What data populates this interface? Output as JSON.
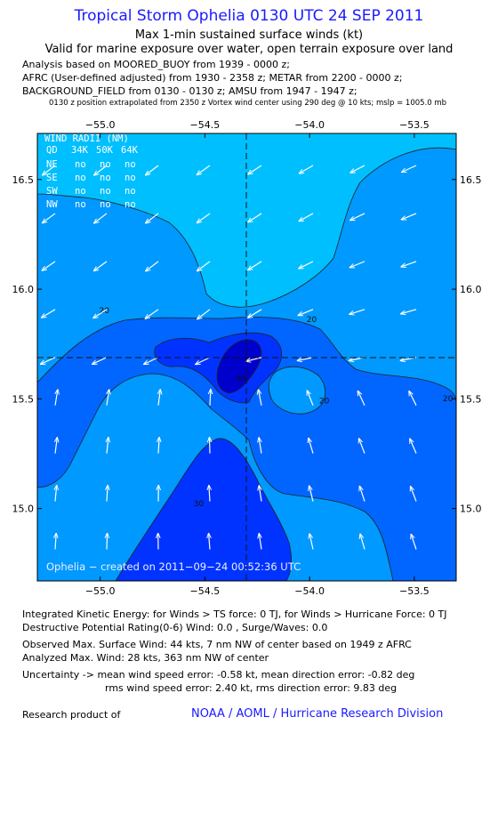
{
  "header": {
    "title": "Tropical Storm Ophelia 0130 UTC 24 SEP 2011",
    "subtitle1": "Max 1-min sustained surface winds (kt)",
    "subtitle2": "Valid for marine exposure over water, open terrain exposure over land",
    "line1": "Analysis based on MOORED_BUOY from 1939 - 0000 z;",
    "line2": "AFRC (User-defined adjusted) from 1930 - 2358 z; METAR from 2200 - 0000 z;",
    "line3": "BACKGROUND_FIELD from 0130 - 0130 z; AMSU from 1947 - 1947 z;",
    "line4": "0130 z position extrapolated from 2350 z Vortex wind center using 290 deg @ 10 kts; mslp = 1005.0 mb"
  },
  "chart_data": {
    "type": "contour",
    "xlim": [
      -55.3,
      -53.3
    ],
    "ylim": [
      14.67,
      16.71
    ],
    "x_ticks": [
      -55.0,
      -54.5,
      -54.0,
      -53.5
    ],
    "x_tick_labels": [
      "−55.0",
      "−54.5",
      "−54.0",
      "−53.5"
    ],
    "y_ticks": [
      16.5,
      16.0,
      15.5,
      15.0
    ],
    "y_tick_labels": [
      "16.5",
      "16.0",
      "15.5",
      "15.0"
    ],
    "center": {
      "lon": -54.28,
      "lat": 15.68
    },
    "contour_labels": [
      {
        "text": "20",
        "lon": -54.98,
        "lat": 15.89
      },
      {
        "text": "20",
        "lon": -53.99,
        "lat": 15.85
      },
      {
        "text": "20",
        "lon": -53.93,
        "lat": 15.48
      },
      {
        "text": "30",
        "lon": -54.53,
        "lat": 15.01
      },
      {
        "text": "20",
        "lon": -53.34,
        "lat": 15.49
      },
      {
        "text": "30",
        "lon": -54.33,
        "lat": 15.58
      }
    ],
    "levels_colors": {
      "0-10": "#00bfff",
      "10-20": "#0099ff",
      "20-30": "#0066ff",
      "30-40": "#0033ff",
      "40+": "#0000cc"
    },
    "wind_radii_table": {
      "title": "WIND RADII (NM)",
      "header": [
        "QD",
        "34K",
        "50K",
        "64K"
      ],
      "rows": [
        [
          "NE",
          "no",
          "no",
          "no"
        ],
        [
          "SE",
          "no",
          "no",
          "no"
        ],
        [
          "SW",
          "no",
          "no",
          "no"
        ],
        [
          "NW",
          "no",
          "no",
          "no"
        ]
      ]
    },
    "credit": "Ophelia − created on 2011−09−24 00:52:36 UTC"
  },
  "footer": {
    "ike": "Integrated Kinetic Energy:  for Winds > TS force: 0 TJ,  for Winds > Hurricane Force: 0 TJ",
    "dpr": "Destructive Potential Rating(0-6)   Wind: 0.0 , Surge/Waves: 0.0",
    "obs": "Observed Max. Surface Wind: 44 kts, 7 nm NW of center based on 1949 z AFRC",
    "analyzed": "Analyzed Max. Wind: 28 kts, 363 nm NW of center",
    "uncert1": "Uncertainty -> mean wind speed error:  -0.58 kt,   mean direction error:  -0.82 deg",
    "uncert2": "rms wind speed error: 2.40 kt,   rms direction error: 9.83 deg",
    "research": "Research product of",
    "noaa": "NOAA / AOML / Hurricane Research Division"
  }
}
